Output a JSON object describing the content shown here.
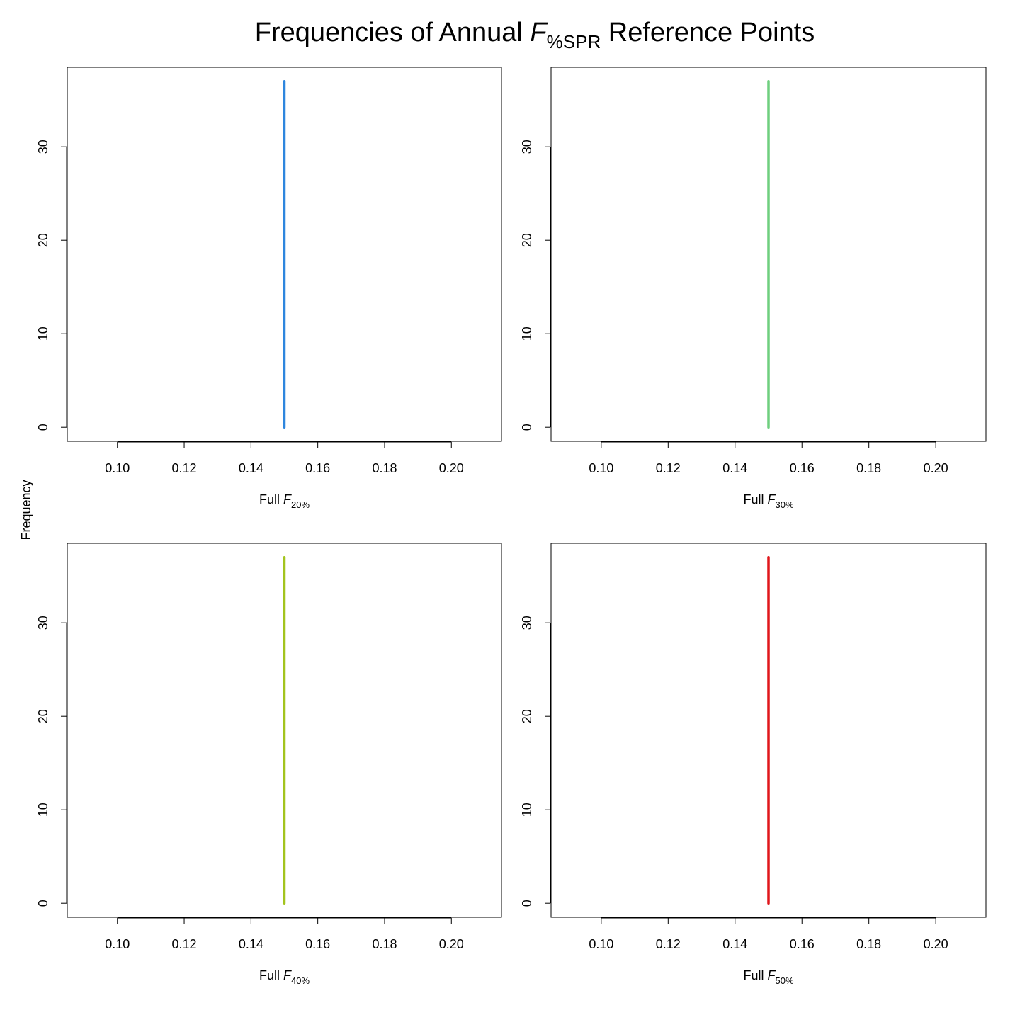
{
  "title": {
    "prefix": "Frequencies of Annual ",
    "symbol": "F",
    "subscript": "%SPR",
    "suffix": " Reference Points"
  },
  "shared_ylabel": "Frequency",
  "chart_data": [
    {
      "type": "line",
      "xlabel": {
        "prefix": "Full",
        "symbol": "F",
        "subscript": "20%"
      },
      "xlim": [
        0.085,
        0.215
      ],
      "ylim": [
        -1.5,
        38.5
      ],
      "xticks": [
        "0.10",
        "0.12",
        "0.14",
        "0.16",
        "0.18",
        "0.20"
      ],
      "yticks": [
        "0",
        "10",
        "20",
        "30"
      ],
      "color": "#2e86de",
      "x": [
        0.15,
        0.15
      ],
      "y": [
        0,
        37
      ],
      "grid": false
    },
    {
      "type": "line",
      "xlabel": {
        "prefix": "Full",
        "symbol": "F",
        "subscript": "30%"
      },
      "xlim": [
        0.085,
        0.215
      ],
      "ylim": [
        -1.5,
        38.5
      ],
      "xticks": [
        "0.10",
        "0.12",
        "0.14",
        "0.16",
        "0.18",
        "0.20"
      ],
      "yticks": [
        "0",
        "10",
        "20",
        "30"
      ],
      "color": "#6fcf7f",
      "x": [
        0.15,
        0.15
      ],
      "y": [
        0,
        37
      ],
      "grid": false
    },
    {
      "type": "line",
      "xlabel": {
        "prefix": "Full",
        "symbol": "F",
        "subscript": "40%"
      },
      "xlim": [
        0.085,
        0.215
      ],
      "ylim": [
        -1.5,
        38.5
      ],
      "xticks": [
        "0.10",
        "0.12",
        "0.14",
        "0.16",
        "0.18",
        "0.20"
      ],
      "yticks": [
        "0",
        "10",
        "20",
        "30"
      ],
      "color": "#a3c41e",
      "x": [
        0.15,
        0.15
      ],
      "y": [
        0,
        37
      ],
      "grid": false
    },
    {
      "type": "line",
      "xlabel": {
        "prefix": "Full",
        "symbol": "F",
        "subscript": "50%"
      },
      "xlim": [
        0.085,
        0.215
      ],
      "ylim": [
        -1.5,
        38.5
      ],
      "xticks": [
        "0.10",
        "0.12",
        "0.14",
        "0.16",
        "0.18",
        "0.20"
      ],
      "yticks": [
        "0",
        "10",
        "20",
        "30"
      ],
      "color": "#e0161b",
      "x": [
        0.15,
        0.15
      ],
      "y": [
        0,
        37
      ],
      "grid": false
    }
  ]
}
